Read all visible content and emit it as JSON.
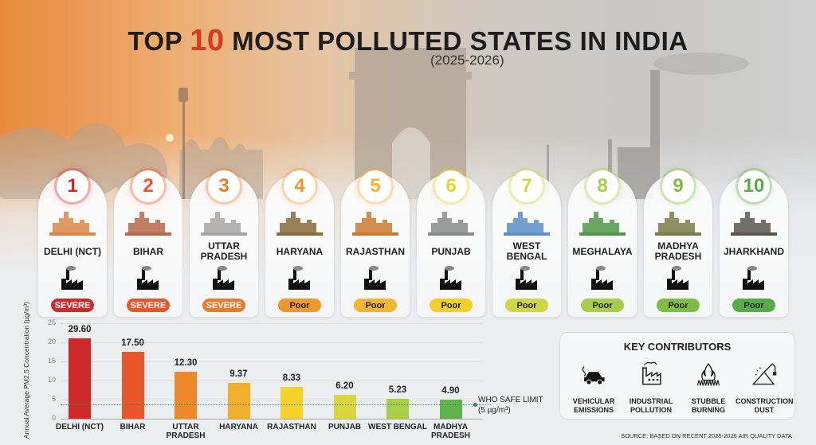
{
  "header": {
    "title_prefix": "TOP",
    "title_number": "10",
    "title_suffix": "MOST POLLUTED STATES IN INDIA",
    "subtitle": "(2025-2026)"
  },
  "colors": {
    "severe_red": "#cf2a2a",
    "severe_orange1": "#e8572a",
    "severe_orange2": "#ec7a2c",
    "poor_orange": "#f1962c",
    "poor_amber": "#f5b52e",
    "poor_yellow": "#f3cf2a",
    "poor_lime": "#cfd744",
    "poor_lgreen": "#a8cd4a",
    "poor_green": "#7fbd46",
    "poor_dgreen": "#55ad48"
  },
  "states": [
    {
      "rank": "1",
      "name": "DELHI (NCT)",
      "status": "SEVERE",
      "color": "#cf2a2a",
      "landmark": "india-gate",
      "icon": "traffic-cars-icon"
    },
    {
      "rank": "2",
      "name": "BIHAR",
      "status": "SEVERE",
      "color": "#e8572a",
      "landmark": "temple-skyline",
      "icon": "factory-smoke-icon"
    },
    {
      "rank": "3",
      "name": "UTTAR PRADESH",
      "status": "SEVERE",
      "color": "#ec7a2c",
      "landmark": "taj-mahal",
      "icon": "industrial-plant-icon"
    },
    {
      "rank": "4",
      "name": "HARYANA",
      "status": "Poor",
      "color": "#f1962c",
      "landmark": "burning-field-crane",
      "icon": "construction-crane-icon"
    },
    {
      "rank": "5",
      "name": "RAJASTHAN",
      "status": "Poor",
      "color": "#f5b52e",
      "landmark": "desert-fort",
      "icon": "dust-cloud-icon"
    },
    {
      "rank": "6",
      "name": "PUNJAB",
      "status": "Poor",
      "color": "#f3cf2a",
      "landmark": "stubble-fire",
      "icon": "brick-kiln-icon"
    },
    {
      "rank": "7",
      "name": "WEST BENGAL",
      "status": "Poor",
      "color": "#cfd744",
      "landmark": "city-skyline",
      "icon": "port-bridge-icon"
    },
    {
      "rank": "8",
      "name": "MEGHALAYA",
      "status": "Poor",
      "color": "#a8cd4a",
      "landmark": "green-hills",
      "icon": "factory-icon"
    },
    {
      "rank": "9",
      "name": "MADHYA PRADESH",
      "status": "Poor",
      "color": "#7fbd46",
      "landmark": "city-skyline-olive",
      "icon": "power-plant-icon"
    },
    {
      "rank": "10",
      "name": "JHARKHAND",
      "status": "Poor",
      "color": "#55ad48",
      "landmark": "open-pit-mine",
      "icon": "excavator-icon"
    }
  ],
  "chart_data": {
    "type": "bar",
    "title": "",
    "xlabel": "",
    "ylabel": "Annual Average PM2.5 Concentration (µg/m³)",
    "ylim": [
      0,
      25
    ],
    "yticks": [
      0,
      5,
      10,
      15,
      20,
      25
    ],
    "grid": true,
    "categories": [
      "DELHI (NCT)",
      "BIHAR",
      "UTTAR PRADESH",
      "HARYANA",
      "RAJASTHAN",
      "PUNJAB",
      "WEST BENGAL",
      "MADHYA PRADESH"
    ],
    "values": [
      29.6,
      17.5,
      12.3,
      9.37,
      8.33,
      6.2,
      5.23,
      4.9
    ],
    "value_labels": [
      "29.60",
      "17.50",
      "12.30",
      "9.37",
      "8.33",
      "6.20",
      "5.23",
      "4.90"
    ],
    "bar_colors": [
      "#cf2a2a",
      "#e8572a",
      "#ee8a2c",
      "#f3ae2e",
      "#f7d22a",
      "#dbd63c",
      "#a9cf48",
      "#5fb44e"
    ],
    "reference_line": {
      "label": "WHO SAFE LIMIT",
      "sublabel": "(5 µg/m³)",
      "value": 5,
      "color": "#2e8b57",
      "style": "dotted"
    }
  },
  "key_contributors": {
    "title": "KEY CONTRIBUTORS",
    "items": [
      {
        "line1": "VEHICULAR",
        "line2": "EMISSIONS",
        "icon": "car-exhaust-icon"
      },
      {
        "line1": "INDUSTRIAL",
        "line2": "POLLUTION",
        "icon": "factory-chimney-icon"
      },
      {
        "line1": "STUBBLE",
        "line2": "BURNING",
        "icon": "fire-grass-icon"
      },
      {
        "line1": "CONSTRUCTION",
        "line2": "DUST",
        "icon": "sand-pile-crane-icon"
      }
    ]
  },
  "source": "SOURCE: BASED ON RECENT 2025-2026 AIR QUALITY DATA"
}
